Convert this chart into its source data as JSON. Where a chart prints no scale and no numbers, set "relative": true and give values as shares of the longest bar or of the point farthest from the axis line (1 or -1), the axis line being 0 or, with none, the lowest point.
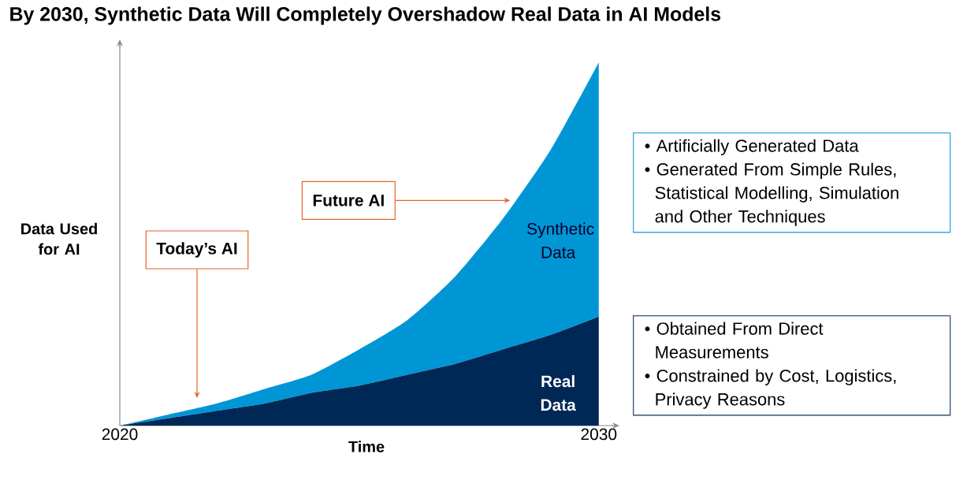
{
  "chart_data": {
    "type": "area",
    "title": "By 2030, Synthetic Data Will Completely Overshadow Real Data in AI Models",
    "xlabel": "Time",
    "ylabel": "Data Used for AI",
    "relative": true,
    "stacked": true,
    "tick_labels": "x",
    "x": [
      2020,
      2021,
      2022,
      2023,
      2024,
      2025,
      2026,
      2027,
      2028,
      2029,
      2030
    ],
    "xlim": [
      2020,
      2030.3
    ],
    "xticks": [
      2020,
      2030
    ],
    "series": [
      {
        "name": "Real Data",
        "color": "#002856",
        "values": [
          0,
          0.02,
          0.04,
          0.06,
          0.09,
          0.11,
          0.14,
          0.17,
          0.21,
          0.25,
          0.3
        ]
      },
      {
        "name": "Synthetic Data",
        "color": "#0096d6",
        "values": [
          0,
          0.01,
          0.02,
          0.04,
          0.05,
          0.1,
          0.15,
          0.24,
          0.36,
          0.51,
          0.7
        ]
      }
    ],
    "annotations": [
      "Today’s AI",
      {
        "text": "Future AI",
        "x": 2028.15,
        "y": 0.62
      },
      "• Artificially Generated Data",
      "• Generated From Simple Rules, Statistical Modelling, Simulation and Other Techniques",
      "• Obtained From Direct Measurements",
      "• Constrained by Cost, Logistics, Privacy Reasons"
    ]
  }
}
